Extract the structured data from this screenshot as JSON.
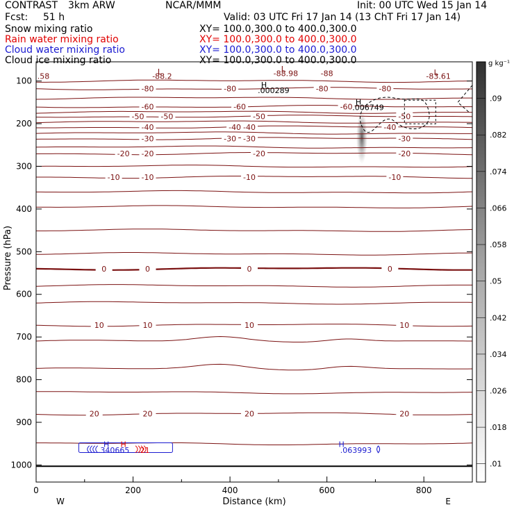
{
  "header": {
    "program": "CONTRAST",
    "model": "3km ARW",
    "center": "NCAR/MMM",
    "init": "Init: 00 UTC Wed 15 Jan 14",
    "fcst_label": "Fcst:",
    "fcst_value": "51 h",
    "valid": "Valid: 03 UTC Fri 17 Jan 14 (13 ChT Fri 17 Jan 14)",
    "fields": [
      {
        "name": "Snow mixing ratio",
        "xy": "XY= 100.0,300.0 to 400.0,300.0",
        "color": "#000000"
      },
      {
        "name": "Rain water mixing ratio",
        "xy": "XY= 100.0,300.0 to 400.0,300.0",
        "color": "#e00000"
      },
      {
        "name": "Cloud water mixing ratio",
        "xy": "XY= 100.0,300.0 to 400.0,300.0",
        "color": "#1a1ad0"
      },
      {
        "name": "Cloud ice mixing ratio",
        "xy": "XY= 100.0,300.0 to 400.0,300.0",
        "color": "#000000"
      }
    ]
  },
  "chart_data": {
    "type": "contour-cross-section",
    "xlabel": "Distance (km)",
    "ylabel": "Pressure (hPa)",
    "xlim": [
      0,
      900
    ],
    "ylim": [
      1040,
      55
    ],
    "xticks": [
      0,
      200,
      400,
      600,
      800
    ],
    "yticks": [
      100,
      200,
      300,
      400,
      500,
      600,
      700,
      800,
      900,
      1000
    ],
    "x_end_labels": {
      "left": "W",
      "right": "E"
    },
    "colorbar": {
      "unit": "g kg⁻¹",
      "ticks": [
        ".01",
        ".018",
        ".026",
        ".034",
        ".042",
        ".05",
        ".058",
        ".066",
        ".074",
        ".082",
        ".09"
      ]
    },
    "temperature_contours": [
      {
        "label": "-80",
        "p": 118,
        "labels_at": [
          230,
          400,
          590,
          720
        ]
      },
      {
        "label": "-60",
        "p": 160,
        "labels_at": [
          230,
          420,
          640
        ]
      },
      {
        "label": "-50",
        "p": 183,
        "labels_at": [
          210,
          270,
          460,
          760
        ]
      },
      {
        "label": "-40",
        "p": 208,
        "labels_at": [
          230,
          410,
          440,
          730
        ]
      },
      {
        "label": "-30",
        "p": 235,
        "labels_at": [
          230,
          400,
          440,
          760
        ]
      },
      {
        "label": "-20",
        "p": 270,
        "labels_at": [
          180,
          230,
          460,
          760
        ]
      },
      {
        "label": "-10",
        "p": 325,
        "labels_at": [
          160,
          230,
          440,
          740
        ]
      },
      {
        "label": "0",
        "p": 540,
        "labels_at": [
          140,
          230,
          440,
          730
        ]
      },
      {
        "label": "10",
        "p": 672,
        "labels_at": [
          130,
          230,
          440,
          760
        ]
      },
      {
        "label": "20",
        "p": 880,
        "labels_at": [
          120,
          230,
          440,
          760
        ]
      }
    ],
    "extra_contours": [
      100,
      140,
      173,
      196,
      222,
      255,
      300,
      360,
      395,
      450,
      505,
      580,
      620,
      710,
      775,
      830,
      950
    ],
    "annotations": [
      {
        "text": "-88.2",
        "x": 260,
        "p": 95
      },
      {
        "text": "-88.98",
        "x": 515,
        "p": 88
      },
      {
        "text": "-88",
        "x": 600,
        "p": 88
      },
      {
        "text": "-83.61",
        "x": 830,
        "p": 95
      },
      {
        "text": ".58",
        "x": 15,
        "p": 95
      },
      {
        "text": "L",
        "x": 255,
        "p": 84
      },
      {
        "text": "L",
        "x": 510,
        "p": 78
      },
      {
        "text": "L",
        "x": 825,
        "p": 86
      },
      {
        "text": "H",
        "x": 470,
        "p": 115
      },
      {
        "text": ".000289",
        "x": 490,
        "p": 128
      },
      {
        "text": "H",
        "x": 665,
        "p": 155
      },
      {
        "text": ".006749",
        "x": 685,
        "p": 168
      }
    ],
    "blue_labels": [
      {
        "text": "H",
        "x": 145,
        "p": 958
      },
      {
        "text": ".340665",
        "x": 160,
        "p": 972
      },
      {
        "text": "H",
        "x": 630,
        "p": 958
      },
      {
        "text": ".063993",
        "x": 660,
        "p": 972
      }
    ],
    "red_labels": [
      {
        "text": "H",
        "x": 180,
        "p": 958
      },
      {
        "text": ".21",
        "x": 222,
        "p": 972
      }
    ]
  }
}
